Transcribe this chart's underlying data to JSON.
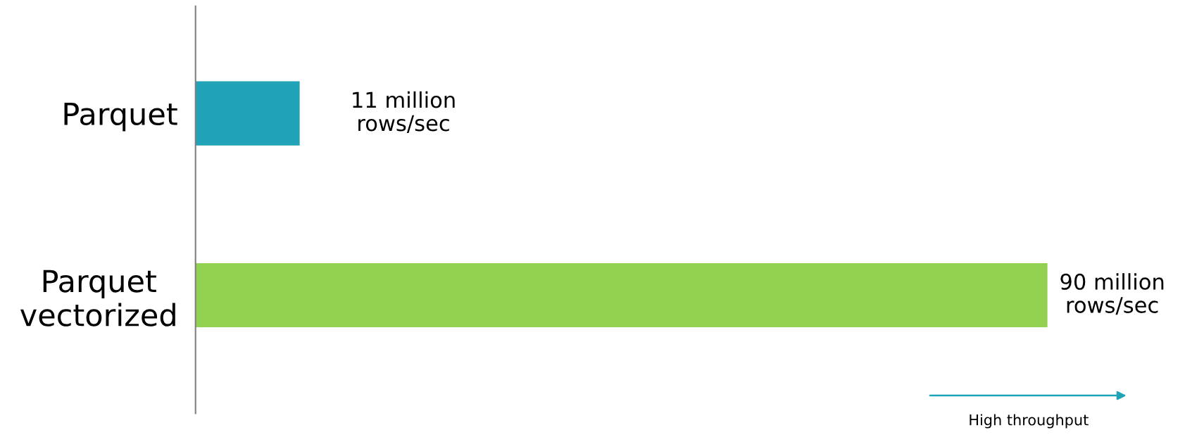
{
  "chart_data": {
    "type": "bar",
    "orientation": "horizontal",
    "categories": [
      "Parquet",
      "Parquet\nvectorized"
    ],
    "values": [
      11,
      90
    ],
    "colors": [
      "#20a3b6",
      "#92d050"
    ],
    "value_labels": [
      "11 million\nrows/sec",
      "90 million\nrows/sec"
    ],
    "tick_labels": "y",
    "grid": false,
    "legend": false,
    "annotations": [
      "High throughput"
    ]
  }
}
